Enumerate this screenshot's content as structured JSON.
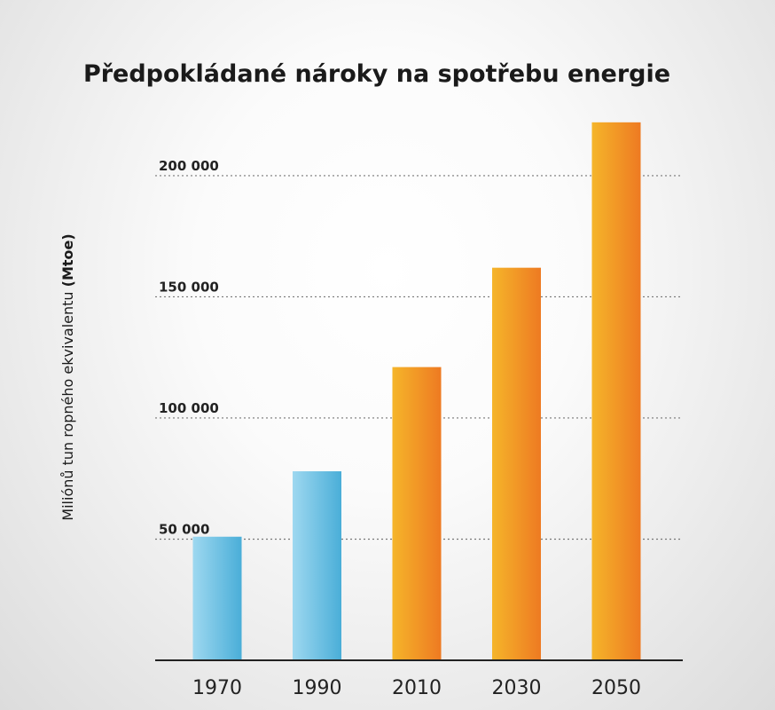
{
  "chart_data": {
    "type": "bar",
    "title": "Předpokládané nároky na spotřebu energie",
    "xlabel": "",
    "ylabel_main": "Miliónů tun ropného ekvivalentu ",
    "ylabel_unit": "(Mtoe)",
    "categories": [
      "1970",
      "1990",
      "2010",
      "2030",
      "2050"
    ],
    "values": [
      51000,
      78000,
      121000,
      162000,
      222000
    ],
    "ylim": [
      0,
      230000
    ],
    "yticks": [
      50000,
      100000,
      150000,
      200000
    ],
    "ytick_labels": [
      "50 000",
      "100 000",
      "150 000",
      "200 000"
    ],
    "grid": true,
    "colors": {
      "historical": [
        "#9ed8f0",
        "#4aaed8"
      ],
      "projected": [
        "#f5b52a",
        "#ee7a22"
      ],
      "grid": "#777777",
      "axis": "#222222",
      "text": "#222222"
    },
    "series_style": [
      "historical",
      "historical",
      "projected",
      "projected",
      "projected"
    ]
  }
}
